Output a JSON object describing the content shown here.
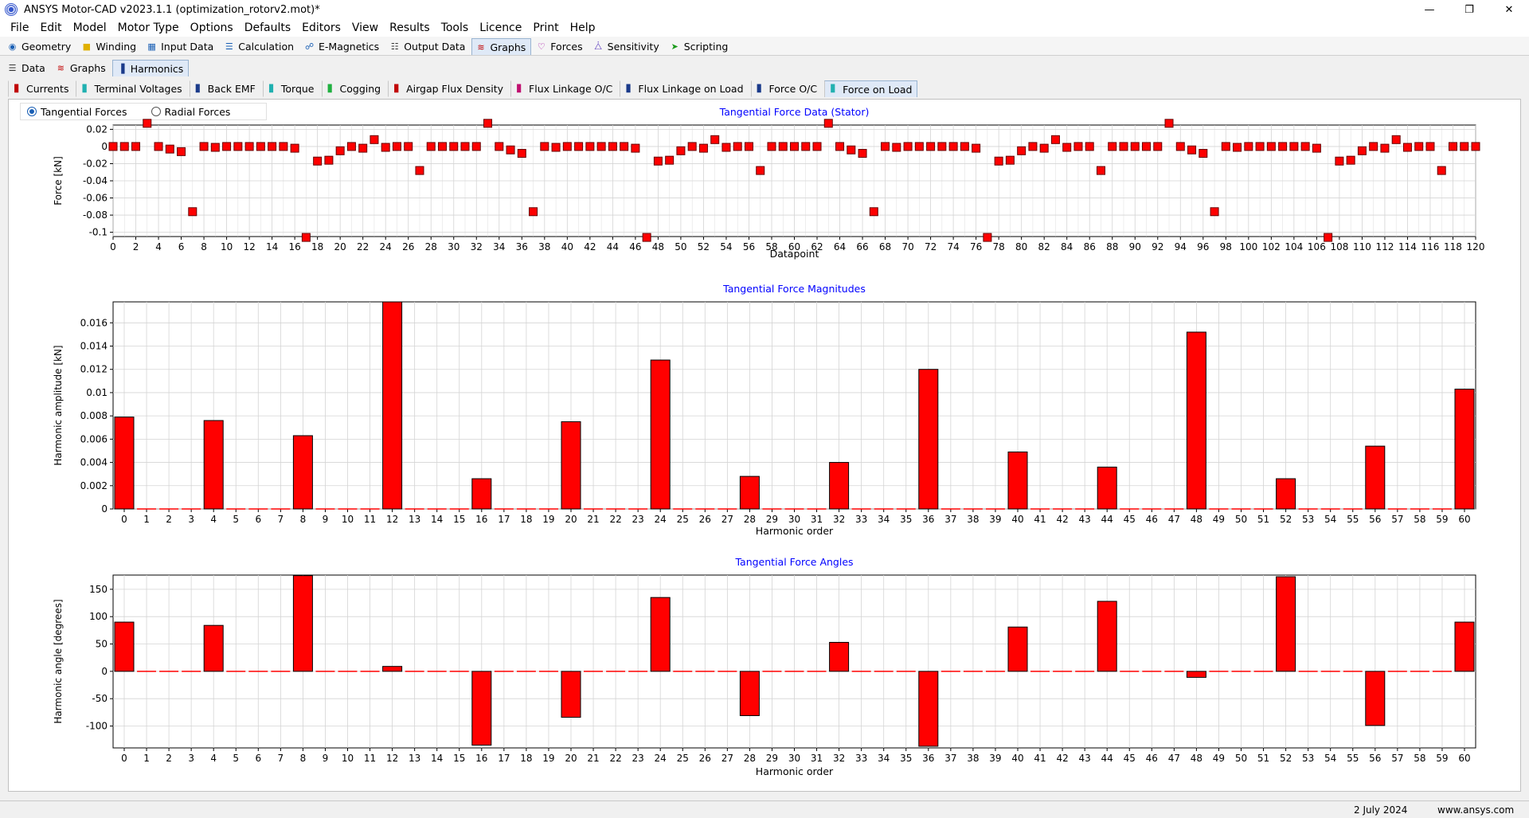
{
  "window": {
    "title": "ANSYS Motor-CAD v2023.1.1 (optimization_rotorv2.mot)*"
  },
  "menu": [
    "File",
    "Edit",
    "Model",
    "Motor Type",
    "Options",
    "Defaults",
    "Editors",
    "View",
    "Results",
    "Tools",
    "Licence",
    "Print",
    "Help"
  ],
  "main_tabs": [
    {
      "label": "Geometry",
      "icon": "geometry-icon",
      "active": false
    },
    {
      "label": "Winding",
      "icon": "winding-icon",
      "active": false
    },
    {
      "label": "Input Data",
      "icon": "input-data-icon",
      "active": false
    },
    {
      "label": "Calculation",
      "icon": "calculation-icon",
      "active": false
    },
    {
      "label": "E-Magnetics",
      "icon": "e-magnetics-icon",
      "active": false
    },
    {
      "label": "Output Data",
      "icon": "output-data-icon",
      "active": false
    },
    {
      "label": "Graphs",
      "icon": "graphs-icon",
      "active": true
    },
    {
      "label": "Forces",
      "icon": "forces-icon",
      "active": false
    },
    {
      "label": "Sensitivity",
      "icon": "sensitivity-icon",
      "active": false
    },
    {
      "label": "Scripting",
      "icon": "scripting-icon",
      "active": false
    }
  ],
  "sub_tabs": [
    {
      "label": "Data",
      "icon": "data-icon",
      "active": false
    },
    {
      "label": "Graphs",
      "icon": "graphs-icon",
      "active": false
    },
    {
      "label": "Harmonics",
      "icon": "harmonics-icon",
      "active": true
    }
  ],
  "harmonic_tabs": [
    {
      "label": "Currents",
      "active": false
    },
    {
      "label": "Terminal Voltages",
      "active": false
    },
    {
      "label": "Back EMF",
      "active": false
    },
    {
      "label": "Torque",
      "active": false
    },
    {
      "label": "Cogging",
      "active": false
    },
    {
      "label": "Airgap Flux Density",
      "active": false
    },
    {
      "label": "Flux Linkage O/C",
      "active": false
    },
    {
      "label": "Flux Linkage on Load",
      "active": false
    },
    {
      "label": "Force O/C",
      "active": false
    },
    {
      "label": "Force on Load",
      "active": true
    }
  ],
  "force_type": {
    "options": [
      "Tangential Forces",
      "Radial Forces"
    ],
    "selected": "Tangential Forces"
  },
  "colors": {
    "bar": "#ff0000",
    "title": "#0000ff",
    "grid": "#d4d4d4"
  },
  "status": {
    "date": "2 July 2024",
    "url": "www.ansys.com"
  },
  "chart_data": [
    {
      "type": "scatter",
      "title": "Tangential Force Data (Stator)",
      "xlabel": "Datapoint",
      "ylabel": "Force [kN]",
      "xlim": [
        0,
        120
      ],
      "ylim": [
        -0.105,
        0.025
      ],
      "yticks": [
        0.02,
        0,
        -0.02,
        -0.04,
        -0.06,
        -0.08,
        -0.1
      ],
      "yticklabels": [
        "0.02",
        "0",
        "-0.02",
        "-0.04",
        "-0.06",
        "-0.08",
        "-0.1"
      ],
      "xticks": [
        0,
        2,
        4,
        6,
        8,
        10,
        12,
        14,
        16,
        18,
        20,
        22,
        24,
        26,
        28,
        30,
        32,
        34,
        36,
        38,
        40,
        42,
        44,
        46,
        48,
        50,
        52,
        54,
        56,
        58,
        60,
        62,
        64,
        66,
        68,
        70,
        72,
        74,
        76,
        78,
        80,
        82,
        84,
        86,
        88,
        90,
        92,
        94,
        96,
        98,
        100,
        102,
        104,
        106,
        108,
        110,
        112,
        114,
        116,
        118,
        120
      ],
      "y": [
        0,
        0,
        0,
        0.027,
        0,
        -0.003,
        -0.006,
        -0.076,
        0,
        -0.001,
        0,
        0,
        0,
        0,
        0,
        0,
        -0.002,
        -0.106,
        -0.017,
        -0.016,
        -0.005,
        0,
        -0.002,
        0.008,
        -0.001,
        0,
        0,
        -0.028,
        0,
        0,
        0,
        0,
        0,
        0.027,
        0,
        -0.004,
        -0.008,
        -0.076,
        0,
        -0.001,
        0,
        0,
        0,
        0,
        0,
        0,
        -0.002,
        -0.106,
        -0.017,
        -0.016,
        -0.005,
        0,
        -0.002,
        0.008,
        -0.001,
        0,
        0,
        -0.028,
        0,
        0,
        0,
        0,
        0,
        0.027,
        0,
        -0.004,
        -0.008,
        -0.076,
        0,
        -0.001,
        0,
        0,
        0,
        0,
        0,
        0,
        -0.002,
        -0.106,
        -0.017,
        -0.016,
        -0.005,
        0,
        -0.002,
        0.008,
        -0.001,
        0,
        0,
        -0.028,
        0,
        0,
        0,
        0,
        0,
        0.027,
        0,
        -0.004,
        -0.008,
        -0.076,
        0,
        -0.001,
        0,
        0,
        0,
        0,
        0,
        0,
        -0.002,
        -0.106,
        -0.017,
        -0.016,
        -0.005,
        0,
        -0.002,
        0.008,
        -0.001,
        0,
        0,
        -0.028,
        0,
        0,
        0
      ],
      "grid": true
    },
    {
      "type": "bar",
      "title": "Tangential Force Magnitudes",
      "xlabel": "Harmonic order",
      "ylabel": "Harmonic amplitude [kN]",
      "ylim": [
        0,
        0.0178
      ],
      "yticks": [
        0,
        0.002,
        0.004,
        0.006,
        0.008,
        0.01,
        0.012,
        0.014,
        0.016
      ],
      "yticklabels": [
        "0",
        "0.002",
        "0.004",
        "0.006",
        "0.008",
        "0.01",
        "0.012",
        "0.014",
        "0.016"
      ],
      "categories": [
        0,
        1,
        2,
        3,
        4,
        5,
        6,
        7,
        8,
        9,
        10,
        11,
        12,
        13,
        14,
        15,
        16,
        17,
        18,
        19,
        20,
        21,
        22,
        23,
        24,
        25,
        26,
        27,
        28,
        29,
        30,
        31,
        32,
        33,
        34,
        35,
        36,
        37,
        38,
        39,
        40,
        41,
        42,
        43,
        44,
        45,
        46,
        47,
        48,
        49,
        50,
        51,
        52,
        53,
        54,
        55,
        56,
        57,
        58,
        59,
        60
      ],
      "values": [
        0.0079,
        0,
        0,
        0,
        0.0076,
        0,
        0,
        0,
        0.0063,
        0,
        0,
        0,
        0.0178,
        0,
        0,
        0,
        0.0026,
        0,
        0,
        0,
        0.0075,
        0,
        0,
        0,
        0.0128,
        0,
        0,
        0,
        0.0028,
        0,
        0,
        0,
        0.004,
        0,
        0,
        0,
        0.012,
        0,
        0,
        0,
        0.0049,
        0,
        0,
        0,
        0.0036,
        0,
        0,
        0,
        0.0152,
        0,
        0,
        0,
        0.0026,
        0,
        0,
        0,
        0.0054,
        0,
        0,
        0,
        0.0103
      ],
      "grid": true
    },
    {
      "type": "bar",
      "title": "Tangential Force Angles",
      "xlabel": "Harmonic order",
      "ylabel": "Harmonic angle [degrees]",
      "ylim": [
        -140,
        176
      ],
      "yticks": [
        150,
        100,
        50,
        0,
        -50,
        -100
      ],
      "yticklabels": [
        "150",
        "100",
        "50",
        "0",
        "-50",
        "-100"
      ],
      "categories": [
        0,
        1,
        2,
        3,
        4,
        5,
        6,
        7,
        8,
        9,
        10,
        11,
        12,
        13,
        14,
        15,
        16,
        17,
        18,
        19,
        20,
        21,
        22,
        23,
        24,
        25,
        26,
        27,
        28,
        29,
        30,
        31,
        32,
        33,
        34,
        35,
        36,
        37,
        38,
        39,
        40,
        41,
        42,
        43,
        44,
        45,
        46,
        47,
        48,
        49,
        50,
        51,
        52,
        53,
        54,
        55,
        56,
        57,
        58,
        59,
        60
      ],
      "values": [
        90,
        0,
        0,
        0,
        84,
        0,
        0,
        0,
        175,
        0,
        0,
        0,
        9,
        0,
        0,
        0,
        -135,
        0,
        0,
        0,
        -84,
        0,
        0,
        0,
        135,
        0,
        0,
        0,
        -81,
        0,
        0,
        0,
        53,
        0,
        0,
        0,
        -137,
        0,
        0,
        0,
        81,
        0,
        0,
        0,
        128,
        0,
        0,
        0,
        -11,
        0,
        0,
        0,
        173,
        0,
        0,
        0,
        -99,
        0,
        0,
        0,
        90
      ],
      "grid": true
    }
  ]
}
